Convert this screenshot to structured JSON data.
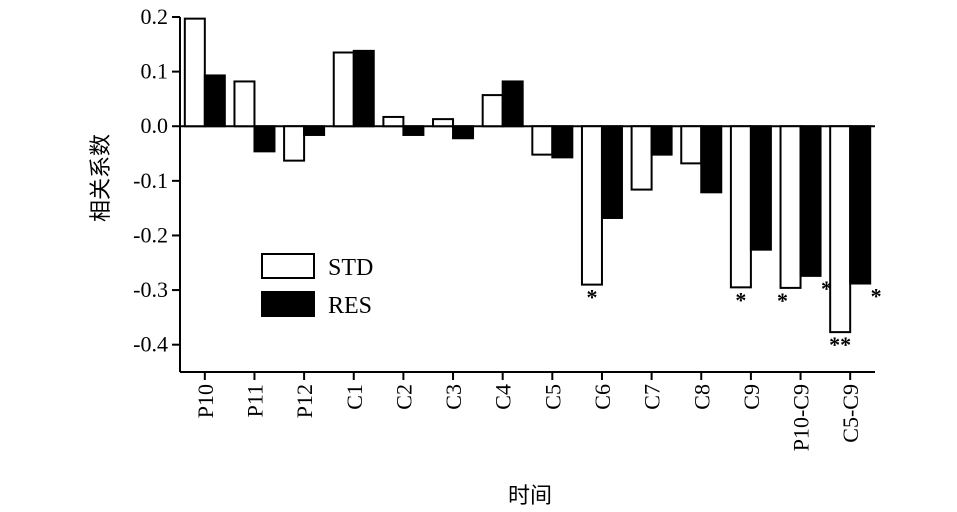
{
  "chart_data": {
    "type": "bar",
    "title": "",
    "xlabel": "时间",
    "ylabel": "相关系数",
    "categories": [
      "P10",
      "P11",
      "P12",
      "C1",
      "C2",
      "C3",
      "C4",
      "C5",
      "C6",
      "C7",
      "C8",
      "C9",
      "P10-C9",
      "C5-C9"
    ],
    "series": [
      {
        "name": "STD",
        "values": [
          0.197,
          0.082,
          -0.063,
          0.135,
          0.017,
          0.013,
          0.057,
          -0.052,
          -0.29,
          -0.116,
          -0.068,
          -0.295,
          -0.296,
          -0.377
        ],
        "significance": [
          "",
          "",
          "",
          "",
          "",
          "",
          "",
          "",
          "*",
          "",
          "",
          "*",
          "*",
          "**"
        ]
      },
      {
        "name": "RES",
        "values": [
          0.093,
          -0.046,
          -0.016,
          0.138,
          -0.016,
          -0.022,
          0.082,
          -0.057,
          -0.168,
          -0.052,
          -0.121,
          -0.226,
          -0.274,
          -0.288
        ],
        "significance": [
          "",
          "",
          "",
          "",
          "",
          "",
          "",
          "",
          "",
          "",
          "",
          "",
          "*",
          "*"
        ]
      }
    ],
    "ylim": [
      -0.45,
      0.2
    ],
    "yticks": [
      "0.2",
      "0.1",
      "0.0",
      "-0.1",
      "-0.2",
      "-0.3",
      "-0.4"
    ],
    "ytick_values": [
      0.2,
      0.1,
      0.0,
      -0.1,
      -0.2,
      -0.3,
      -0.4
    ],
    "legend": {
      "position": "lower-left",
      "entries": [
        "STD",
        "RES"
      ]
    },
    "colors": {
      "STD": "#ffffff",
      "RES": "#000000",
      "stroke": "#000000"
    },
    "grid": false
  }
}
